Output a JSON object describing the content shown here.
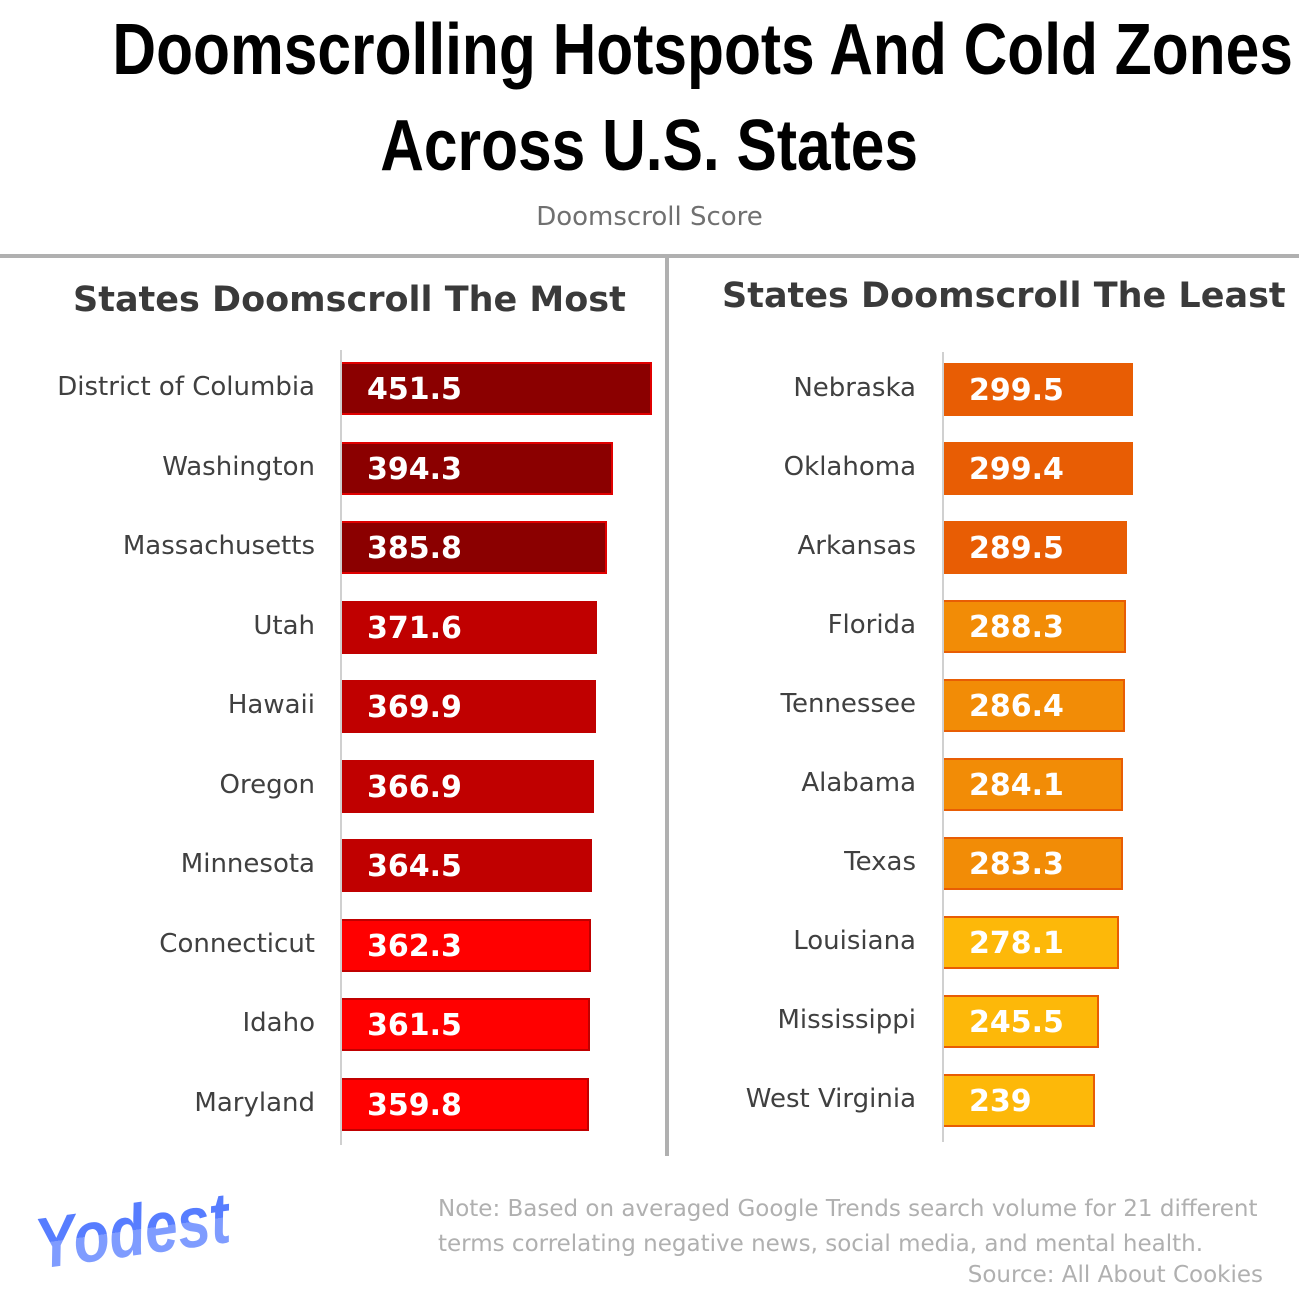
{
  "title_line1": "Doomscrolling Hotspots And Cold Zones",
  "title_line2": "Across U.S. States",
  "subtitle": "Doomscroll Score",
  "logo_text": "Yodest",
  "note_line1": "Note: Based on averaged Google Trends search volume for 21 different",
  "note_line2": "terms correlating negative news, social media, and mental health.",
  "source": "Source: All About Cookies",
  "chart_data": [
    {
      "type": "bar",
      "orientation": "horizontal",
      "title": "States Doomscroll The Most",
      "categories": [
        "District of Columbia",
        "Washington",
        "Massachusetts",
        "Utah",
        "Hawaii",
        "Oregon",
        "Minnesota",
        "Connecticut",
        "Idaho",
        "Maryland"
      ],
      "values": [
        451.5,
        394.3,
        385.8,
        371.6,
        369.9,
        366.9,
        364.5,
        362.3,
        361.5,
        359.8
      ],
      "labels": [
        "451.5",
        "394.3",
        "385.8",
        "371.6",
        "369.9",
        "366.9",
        "364.5",
        "362.3",
        "361.5",
        "359.8"
      ],
      "colors": [
        "#8B0000",
        "#8B0000",
        "#8B0000",
        "#C00000",
        "#C00000",
        "#C00000",
        "#C00000",
        "#FF0000",
        "#FF0000",
        "#FF0000"
      ],
      "border_colors": [
        "#E00000",
        "#E00000",
        "#E00000",
        "#C00000",
        "#C00000",
        "#C00000",
        "#C00000",
        "#C00000",
        "#C00000",
        "#C00000"
      ],
      "grid": false
    },
    {
      "type": "bar",
      "orientation": "horizontal",
      "title": "States Doomscroll The Least",
      "categories": [
        "Nebraska",
        "Oklahoma",
        "Arkansas",
        "Florida",
        "Tennessee",
        "Alabama",
        "Texas",
        "Louisiana",
        "Mississippi",
        "West Virginia"
      ],
      "values": [
        299.5,
        299.4,
        289.5,
        288.3,
        286.4,
        284.1,
        283.3,
        278.1,
        245.5,
        239
      ],
      "labels": [
        "299.5",
        "299.4",
        "289.5",
        "288.3",
        "286.4",
        "284.1",
        "283.3",
        "278.1",
        "245.5",
        "239"
      ],
      "colors": [
        "#E85D04",
        "#E85D04",
        "#E85D04",
        "#F28C06",
        "#F28C06",
        "#F28C06",
        "#F28C06",
        "#FDB809",
        "#FDB809",
        "#FDB809"
      ],
      "border_colors": [
        "#E85D04",
        "#E85D04",
        "#E85D04",
        "#E85D04",
        "#E85D04",
        "#E85D04",
        "#E85D04",
        "#E85D04",
        "#E85D04",
        "#E85D04"
      ],
      "grid": false
    }
  ]
}
